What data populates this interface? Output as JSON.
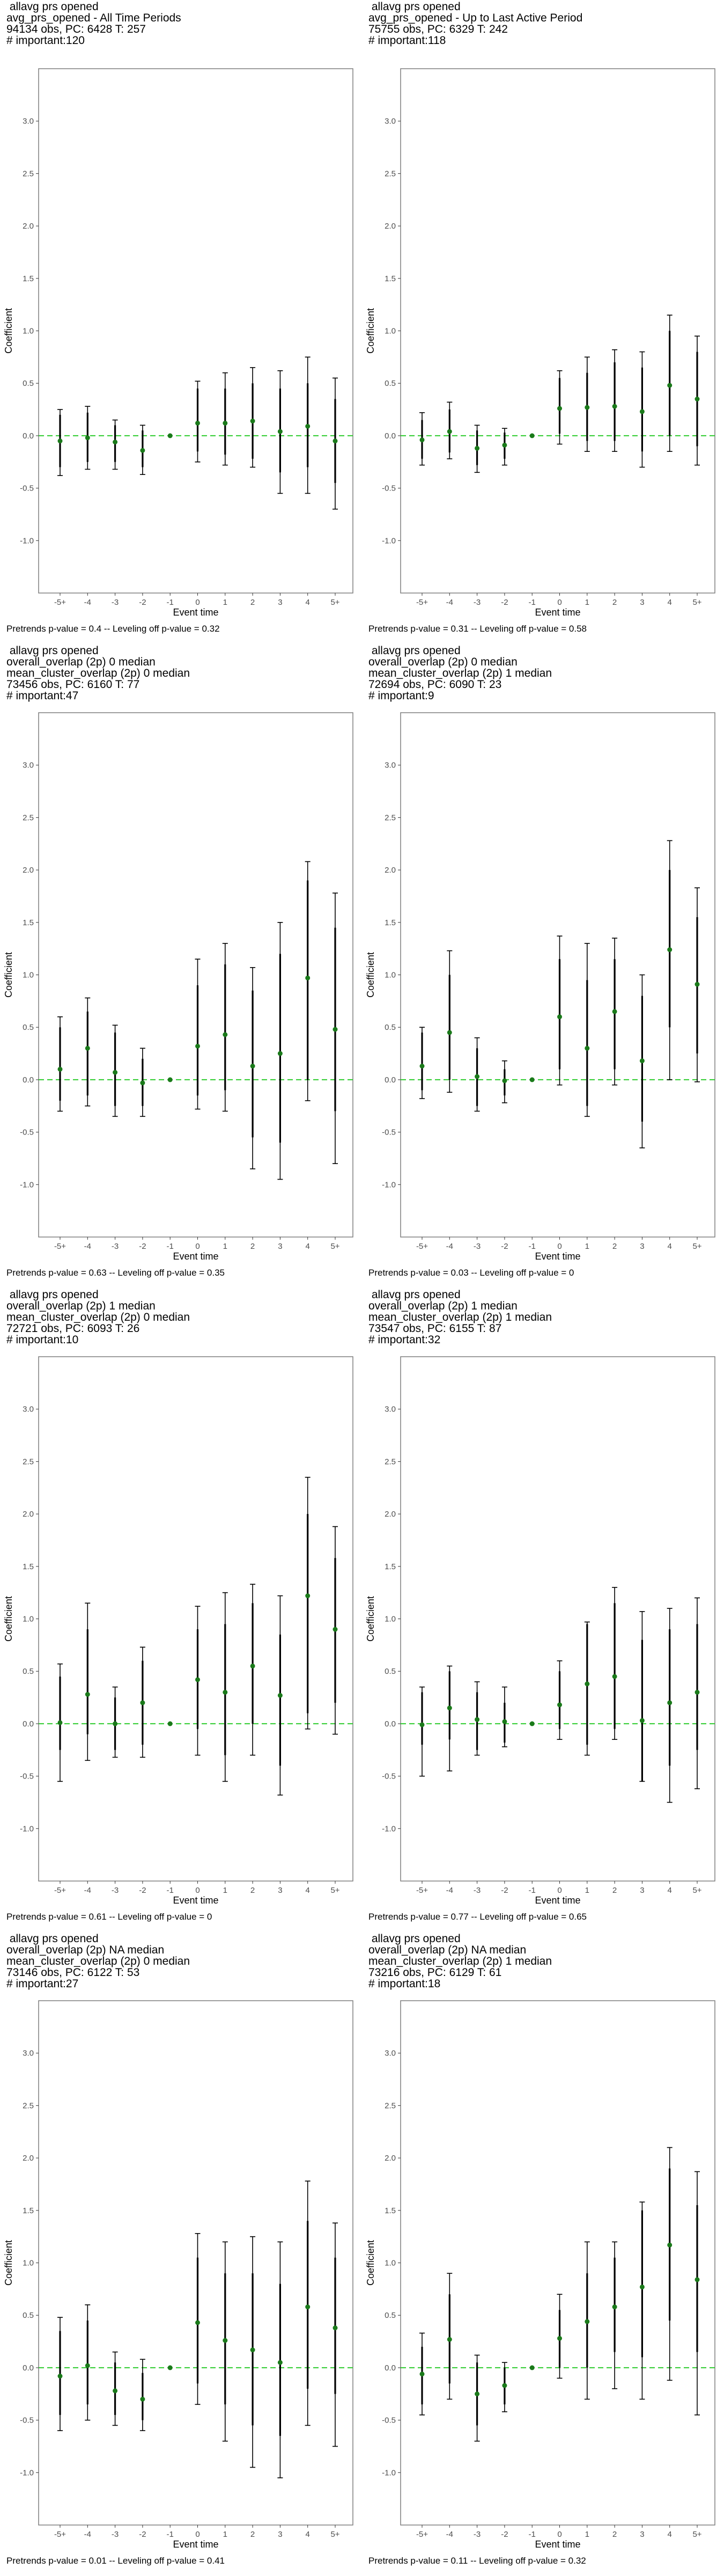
{
  "chart_data": [
    {
      "type": "scatter",
      "title_lines": [
        "allavg prs opened",
        "avg_prs_opened - All Time Periods",
        "94134 obs, PC: 6428 T: 257",
        "# important:120"
      ],
      "xlabel": "Event time",
      "ylabel": "Coefficient",
      "caption": "Pretrends p-value = 0.4 -- Leveling off p-value = 0.32",
      "categories": [
        "-5+",
        "-4",
        "-3",
        "-2",
        "-1",
        "0",
        "1",
        "2",
        "3",
        "4",
        "5+"
      ],
      "ylim": [
        -1.5,
        3.5
      ],
      "yticks": [
        -1.0,
        -0.5,
        0.0,
        0.5,
        1.0,
        1.5,
        2.0,
        2.5,
        3.0
      ],
      "estimates": [
        -0.05,
        -0.02,
        -0.06,
        -0.14,
        0.0,
        0.12,
        0.12,
        0.14,
        0.04,
        0.09,
        -0.05
      ],
      "ci90": [
        [
          -0.3,
          0.2
        ],
        [
          -0.25,
          0.22
        ],
        [
          -0.25,
          0.1
        ],
        [
          -0.3,
          0.05
        ],
        null,
        [
          -0.15,
          0.45
        ],
        [
          -0.18,
          0.45
        ],
        [
          -0.22,
          0.5
        ],
        [
          -0.35,
          0.45
        ],
        [
          -0.3,
          0.5
        ],
        [
          -0.45,
          0.35
        ]
      ],
      "ci95": [
        [
          -0.38,
          0.25
        ],
        [
          -0.32,
          0.28
        ],
        [
          -0.32,
          0.15
        ],
        [
          -0.37,
          0.1
        ],
        null,
        [
          -0.25,
          0.52
        ],
        [
          -0.28,
          0.6
        ],
        [
          -0.3,
          0.65
        ],
        [
          -0.55,
          0.62
        ],
        [
          -0.55,
          0.75
        ],
        [
          -0.7,
          0.55
        ]
      ]
    },
    {
      "type": "scatter",
      "title_lines": [
        "allavg prs opened",
        "avg_prs_opened - Up to Last Active Period",
        "75755 obs, PC: 6329 T: 242",
        "# important:118"
      ],
      "xlabel": "Event time",
      "ylabel": "Coefficient",
      "caption": "Pretrends p-value = 0.31 -- Leveling off p-value = 0.58",
      "categories": [
        "-5+",
        "-4",
        "-3",
        "-2",
        "-1",
        "0",
        "1",
        "2",
        "3",
        "4",
        "5+"
      ],
      "ylim": [
        -1.5,
        3.5
      ],
      "yticks": [
        -1.0,
        -0.5,
        0.0,
        0.5,
        1.0,
        1.5,
        2.0,
        2.5,
        3.0
      ],
      "estimates": [
        -0.04,
        0.04,
        -0.12,
        -0.09,
        0.0,
        0.26,
        0.27,
        0.28,
        0.23,
        0.48,
        0.35
      ],
      "ci90": [
        [
          -0.22,
          0.15
        ],
        [
          -0.16,
          0.25
        ],
        [
          -0.28,
          0.05
        ],
        [
          -0.22,
          0.03
        ],
        null,
        [
          0.02,
          0.55
        ],
        [
          -0.05,
          0.6
        ],
        [
          -0.05,
          0.7
        ],
        [
          -0.15,
          0.65
        ],
        [
          0.0,
          1.0
        ],
        [
          -0.1,
          0.8
        ]
      ],
      "ci95": [
        [
          -0.28,
          0.22
        ],
        [
          -0.22,
          0.32
        ],
        [
          -0.35,
          0.1
        ],
        [
          -0.28,
          0.07
        ],
        null,
        [
          -0.08,
          0.62
        ],
        [
          -0.15,
          0.75
        ],
        [
          -0.15,
          0.82
        ],
        [
          -0.3,
          0.8
        ],
        [
          -0.15,
          1.15
        ],
        [
          -0.28,
          0.95
        ]
      ]
    },
    {
      "type": "scatter",
      "title_lines": [
        "allavg prs opened",
        "overall_overlap (2p) 0 median",
        "mean_cluster_overlap (2p) 0 median",
        "73456 obs, PC: 6160 T: 77",
        "# important:47"
      ],
      "xlabel": "Event time",
      "ylabel": "Coefficient",
      "caption": "Pretrends p-value = 0.63 -- Leveling off p-value = 0.35",
      "categories": [
        "-5+",
        "-4",
        "-3",
        "-2",
        "-1",
        "0",
        "1",
        "2",
        "3",
        "4",
        "5+"
      ],
      "ylim": [
        -1.5,
        3.5
      ],
      "yticks": [
        -1.0,
        -0.5,
        0.0,
        0.5,
        1.0,
        1.5,
        2.0,
        2.5,
        3.0
      ],
      "estimates": [
        0.1,
        0.3,
        0.07,
        -0.03,
        0.0,
        0.32,
        0.43,
        0.13,
        0.25,
        0.97,
        0.48
      ],
      "ci90": [
        [
          -0.2,
          0.5
        ],
        [
          -0.15,
          0.65
        ],
        [
          -0.25,
          0.45
        ],
        [
          -0.25,
          0.2
        ],
        null,
        [
          -0.15,
          0.9
        ],
        [
          -0.1,
          1.1
        ],
        [
          -0.55,
          0.85
        ],
        [
          -0.6,
          1.2
        ],
        [
          0.0,
          1.9
        ],
        [
          -0.3,
          1.45
        ]
      ],
      "ci95": [
        [
          -0.3,
          0.6
        ],
        [
          -0.25,
          0.78
        ],
        [
          -0.35,
          0.52
        ],
        [
          -0.35,
          0.3
        ],
        null,
        [
          -0.28,
          1.15
        ],
        [
          -0.3,
          1.3
        ],
        [
          -0.85,
          1.07
        ],
        [
          -0.95,
          1.5
        ],
        [
          -0.2,
          2.08
        ],
        [
          -0.8,
          1.78
        ]
      ]
    },
    {
      "type": "scatter",
      "title_lines": [
        "allavg prs opened",
        "overall_overlap (2p) 0 median",
        "mean_cluster_overlap (2p) 1 median",
        "72694 obs, PC: 6090 T: 23",
        "# important:9"
      ],
      "xlabel": "Event time",
      "ylabel": "Coefficient",
      "caption": "Pretrends p-value = 0.03 -- Leveling off p-value = 0",
      "categories": [
        "-5+",
        "-4",
        "-3",
        "-2",
        "-1",
        "0",
        "1",
        "2",
        "3",
        "4",
        "5+"
      ],
      "ylim": [
        -1.5,
        3.5
      ],
      "yticks": [
        -1.0,
        -0.5,
        0.0,
        0.5,
        1.0,
        1.5,
        2.0,
        2.5,
        3.0
      ],
      "estimates": [
        0.13,
        0.45,
        0.03,
        -0.01,
        0.0,
        0.6,
        0.3,
        0.65,
        0.18,
        1.24,
        0.91
      ],
      "ci90": [
        [
          -0.1,
          0.45
        ],
        [
          0.0,
          1.0
        ],
        [
          -0.25,
          0.3
        ],
        [
          -0.15,
          0.1
        ],
        null,
        [
          0.1,
          1.15
        ],
        [
          -0.25,
          0.95
        ],
        [
          0.1,
          1.15
        ],
        [
          -0.4,
          0.8
        ],
        [
          0.5,
          2.0
        ],
        [
          0.25,
          1.55
        ]
      ],
      "ci95": [
        [
          -0.18,
          0.5
        ],
        [
          -0.12,
          1.23
        ],
        [
          -0.3,
          0.4
        ],
        [
          -0.22,
          0.18
        ],
        null,
        [
          -0.05,
          1.37
        ],
        [
          -0.35,
          1.3
        ],
        [
          -0.05,
          1.35
        ],
        [
          -0.65,
          1.0
        ],
        [
          0.0,
          2.28
        ],
        [
          -0.02,
          1.83
        ]
      ]
    },
    {
      "type": "scatter",
      "title_lines": [
        "allavg prs opened",
        "overall_overlap (2p) 1 median",
        "mean_cluster_overlap (2p) 0 median",
        "72721 obs, PC: 6093 T: 26",
        "# important:10"
      ],
      "xlabel": "Event time",
      "ylabel": "Coefficient",
      "caption": "Pretrends p-value = 0.61 -- Leveling off p-value = 0",
      "categories": [
        "-5+",
        "-4",
        "-3",
        "-2",
        "-1",
        "0",
        "1",
        "2",
        "3",
        "4",
        "5+"
      ],
      "ylim": [
        -1.5,
        3.5
      ],
      "yticks": [
        -1.0,
        -0.5,
        0.0,
        0.5,
        1.0,
        1.5,
        2.0,
        2.5,
        3.0
      ],
      "estimates": [
        0.01,
        0.28,
        0.0,
        0.2,
        0.0,
        0.42,
        0.3,
        0.55,
        0.27,
        1.22,
        0.9
      ],
      "ci90": [
        [
          -0.25,
          0.45
        ],
        [
          -0.1,
          0.9
        ],
        [
          -0.25,
          0.25
        ],
        [
          -0.2,
          0.6
        ],
        null,
        [
          -0.05,
          0.9
        ],
        [
          -0.3,
          0.95
        ],
        [
          0.0,
          1.15
        ],
        [
          -0.4,
          0.85
        ],
        [
          0.1,
          2.0
        ],
        [
          0.2,
          1.58
        ]
      ],
      "ci95": [
        [
          -0.55,
          0.57
        ],
        [
          -0.35,
          1.15
        ],
        [
          -0.32,
          0.35
        ],
        [
          -0.32,
          0.73
        ],
        null,
        [
          -0.3,
          1.12
        ],
        [
          -0.55,
          1.25
        ],
        [
          -0.3,
          1.33
        ],
        [
          -0.68,
          1.22
        ],
        [
          -0.05,
          2.35
        ],
        [
          -0.1,
          1.88
        ]
      ]
    },
    {
      "type": "scatter",
      "title_lines": [
        "allavg prs opened",
        "overall_overlap (2p) 1 median",
        "mean_cluster_overlap (2p) 1 median",
        "73547 obs, PC: 6155 T: 87",
        "# important:32"
      ],
      "xlabel": "Event time",
      "ylabel": "Coefficient",
      "caption": "Pretrends p-value = 0.77 -- Leveling off p-value = 0.65",
      "categories": [
        "-5+",
        "-4",
        "-3",
        "-2",
        "-1",
        "0",
        "1",
        "2",
        "3",
        "4",
        "5+"
      ],
      "ylim": [
        -1.5,
        3.5
      ],
      "yticks": [
        -1.0,
        -0.5,
        0.0,
        0.5,
        1.0,
        1.5,
        2.0,
        2.5,
        3.0
      ],
      "estimates": [
        -0.01,
        0.15,
        0.04,
        0.02,
        0.0,
        0.18,
        0.38,
        0.45,
        0.03,
        0.2,
        0.3
      ],
      "ci90": [
        [
          -0.2,
          0.3
        ],
        [
          -0.15,
          0.5
        ],
        [
          -0.25,
          0.3
        ],
        [
          -0.18,
          0.2
        ],
        null,
        [
          -0.05,
          0.5
        ],
        [
          -0.2,
          0.95
        ],
        [
          -0.05,
          1.15
        ],
        [
          -0.55,
          0.8
        ],
        [
          -0.4,
          0.9
        ],
        [
          -0.25,
          0.95
        ]
      ],
      "ci95": [
        [
          -0.5,
          0.35
        ],
        [
          -0.45,
          0.55
        ],
        [
          -0.3,
          0.4
        ],
        [
          -0.22,
          0.35
        ],
        null,
        [
          -0.15,
          0.6
        ],
        [
          -0.3,
          0.97
        ],
        [
          -0.15,
          1.3
        ],
        [
          -0.55,
          1.07
        ],
        [
          -0.75,
          1.1
        ],
        [
          -0.62,
          1.2
        ]
      ]
    },
    {
      "type": "scatter",
      "title_lines": [
        "allavg prs opened",
        "overall_overlap (2p) NA median",
        "mean_cluster_overlap (2p) 0 median",
        "73146 obs, PC: 6122 T: 53",
        "# important:27"
      ],
      "xlabel": "Event time",
      "ylabel": "Coefficient",
      "caption": "Pretrends p-value = 0.01 -- Leveling off p-value = 0.41",
      "categories": [
        "-5+",
        "-4",
        "-3",
        "-2",
        "-1",
        "0",
        "1",
        "2",
        "3",
        "4",
        "5+"
      ],
      "ylim": [
        -1.5,
        3.5
      ],
      "yticks": [
        -1.0,
        -0.5,
        0.0,
        0.5,
        1.0,
        1.5,
        2.0,
        2.5,
        3.0
      ],
      "estimates": [
        -0.08,
        0.02,
        -0.22,
        -0.3,
        0.0,
        0.43,
        0.26,
        0.17,
        0.05,
        0.58,
        0.38
      ],
      "ci90": [
        [
          -0.45,
          0.35
        ],
        [
          -0.35,
          0.45
        ],
        [
          -0.45,
          0.05
        ],
        [
          -0.5,
          -0.05
        ],
        null,
        [
          -0.15,
          1.05
        ],
        [
          -0.35,
          0.9
        ],
        [
          -0.55,
          0.9
        ],
        [
          -0.65,
          0.8
        ],
        [
          -0.2,
          1.4
        ],
        [
          -0.25,
          1.05
        ]
      ],
      "ci95": [
        [
          -0.6,
          0.48
        ],
        [
          -0.5,
          0.6
        ],
        [
          -0.55,
          0.15
        ],
        [
          -0.6,
          0.08
        ],
        null,
        [
          -0.35,
          1.28
        ],
        [
          -0.7,
          1.2
        ],
        [
          -0.95,
          1.25
        ],
        [
          -1.05,
          1.2
        ],
        [
          -0.55,
          1.78
        ],
        [
          -0.75,
          1.38
        ]
      ]
    },
    {
      "type": "scatter",
      "title_lines": [
        "allavg prs opened",
        "overall_overlap (2p) NA median",
        "mean_cluster_overlap (2p) 1 median",
        "73216 obs, PC: 6129 T: 61",
        "# important:18"
      ],
      "xlabel": "Event time",
      "ylabel": "Coefficient",
      "caption": "Pretrends p-value = 0.11 -- Leveling off p-value = 0.32",
      "categories": [
        "-5+",
        "-4",
        "-3",
        "-2",
        "-1",
        "0",
        "1",
        "2",
        "3",
        "4",
        "5+"
      ],
      "ylim": [
        -1.5,
        3.5
      ],
      "yticks": [
        -1.0,
        -0.5,
        0.0,
        0.5,
        1.0,
        1.5,
        2.0,
        2.5,
        3.0
      ],
      "estimates": [
        -0.06,
        0.27,
        -0.25,
        -0.17,
        0.0,
        0.28,
        0.44,
        0.58,
        0.77,
        1.17,
        0.84
      ],
      "ci90": [
        [
          -0.35,
          0.2
        ],
        [
          -0.15,
          0.7
        ],
        [
          -0.55,
          0.05
        ],
        [
          -0.35,
          0.0
        ],
        null,
        [
          0.0,
          0.55
        ],
        [
          0.0,
          0.9
        ],
        [
          0.15,
          1.05
        ],
        [
          0.1,
          1.5
        ],
        [
          0.45,
          1.9
        ],
        [
          0.15,
          1.55
        ]
      ],
      "ci95": [
        [
          -0.45,
          0.33
        ],
        [
          -0.3,
          0.9
        ],
        [
          -0.7,
          0.12
        ],
        [
          -0.42,
          0.05
        ],
        null,
        [
          -0.1,
          0.7
        ],
        [
          -0.3,
          1.2
        ],
        [
          -0.2,
          1.2
        ],
        [
          -0.3,
          1.58
        ],
        [
          -0.12,
          2.1
        ],
        [
          -0.45,
          1.87
        ]
      ]
    }
  ],
  "colors": {
    "point": "#1a7a1a",
    "zero_line": "#2ecc2e",
    "error_bar": "#000000",
    "grid_none": "#ffffff",
    "frame": "#7f7f7f"
  }
}
